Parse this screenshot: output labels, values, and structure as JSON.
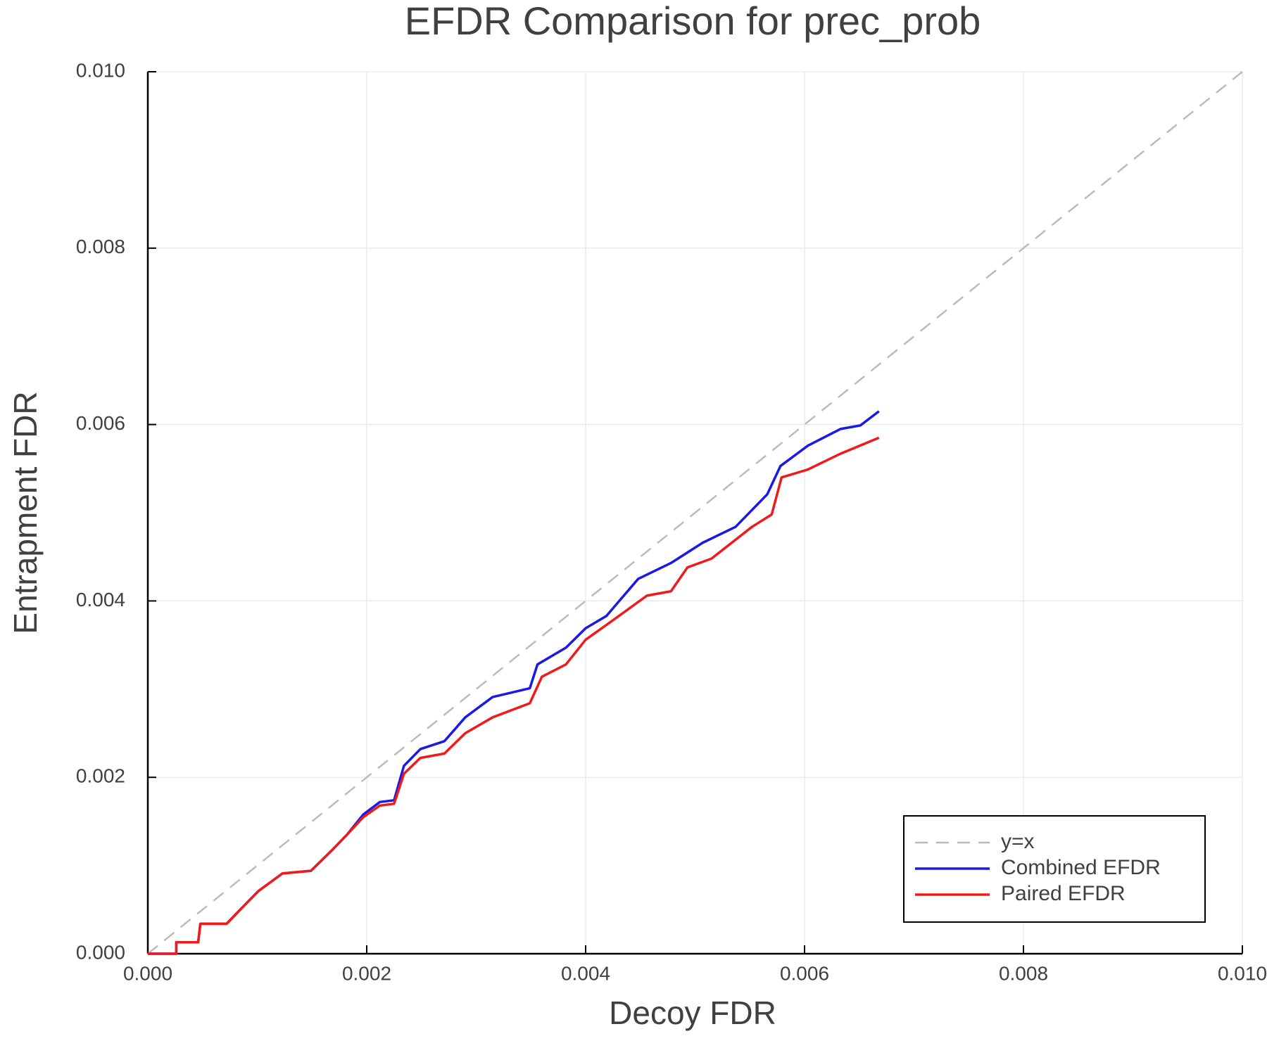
{
  "chart_data": {
    "type": "line",
    "title": "EFDR Comparison for prec_prob",
    "x_label": "Decoy FDR",
    "y_label": "Entrapment FDR",
    "xlim": [
      0,
      0.01
    ],
    "ylim": [
      0,
      0.01
    ],
    "xticks": [
      {
        "value": 0,
        "label": "0.000"
      },
      {
        "value": 0.002,
        "label": "0.002"
      },
      {
        "value": 0.004,
        "label": "0.004"
      },
      {
        "value": 0.006,
        "label": "0.006"
      },
      {
        "value": 0.008,
        "label": "0.008"
      },
      {
        "value": 0.01,
        "label": "0.010"
      }
    ],
    "yticks": [
      {
        "value": 0,
        "label": "0.000"
      },
      {
        "value": 0.002,
        "label": "0.002"
      },
      {
        "value": 0.004,
        "label": "0.004"
      },
      {
        "value": 0.006,
        "label": "0.006"
      },
      {
        "value": 0.008,
        "label": "0.008"
      },
      {
        "value": 0.01,
        "label": "0.010"
      }
    ],
    "grid": true,
    "legend": "lower right",
    "series": [
      {
        "name": "y=x",
        "color": "#bbbbbb",
        "dash": true,
        "x": [
          0,
          0.01
        ],
        "values": [
          0,
          0.01
        ]
      },
      {
        "name": "Combined EFDR",
        "color": "#1a1ae6",
        "x": [
          0,
          0.00026,
          0.00026,
          0.00046,
          0.00048,
          0.00072,
          0.00086,
          0.00101,
          0.00123,
          0.00149,
          0.00168,
          0.00182,
          0.00197,
          0.00212,
          0.00225,
          0.00234,
          0.00249,
          0.00271,
          0.0029,
          0.00315,
          0.00349,
          0.00356,
          0.00382,
          0.004,
          0.00419,
          0.00448,
          0.00478,
          0.00507,
          0.00537,
          0.00566,
          0.00578,
          0.00603,
          0.00633,
          0.00651,
          0.00668
        ],
        "values": [
          0,
          0,
          0.00013,
          0.00013,
          0.00034,
          0.00034,
          0.00052,
          0.00071,
          0.00091,
          0.00094,
          0.00117,
          0.00135,
          0.00158,
          0.00172,
          0.00174,
          0.00213,
          0.00232,
          0.00241,
          0.00268,
          0.00291,
          0.00301,
          0.00328,
          0.00347,
          0.00369,
          0.00383,
          0.00425,
          0.00443,
          0.00466,
          0.00484,
          0.00521,
          0.00553,
          0.00576,
          0.00595,
          0.00599,
          0.00615
        ]
      },
      {
        "name": "Paired EFDR",
        "color": "#f01a1a",
        "x": [
          0,
          0.00026,
          0.00026,
          0.00046,
          0.00048,
          0.00072,
          0.00086,
          0.00101,
          0.00123,
          0.00149,
          0.00168,
          0.00182,
          0.00197,
          0.00212,
          0.00225,
          0.00234,
          0.00249,
          0.00271,
          0.0029,
          0.00315,
          0.00349,
          0.0036,
          0.00382,
          0.004,
          0.00426,
          0.00456,
          0.00478,
          0.00493,
          0.00515,
          0.00552,
          0.0057,
          0.00579,
          0.00603,
          0.00633,
          0.00668
        ],
        "values": [
          0,
          0,
          0.00013,
          0.00013,
          0.00034,
          0.00034,
          0.00052,
          0.00071,
          0.00091,
          0.00094,
          0.00117,
          0.00135,
          0.00155,
          0.00168,
          0.0017,
          0.00204,
          0.00222,
          0.00227,
          0.0025,
          0.00268,
          0.00284,
          0.00314,
          0.00328,
          0.00356,
          0.00379,
          0.00406,
          0.00411,
          0.00438,
          0.00448,
          0.00484,
          0.00498,
          0.0054,
          0.00549,
          0.00567,
          0.00585
        ]
      }
    ]
  }
}
